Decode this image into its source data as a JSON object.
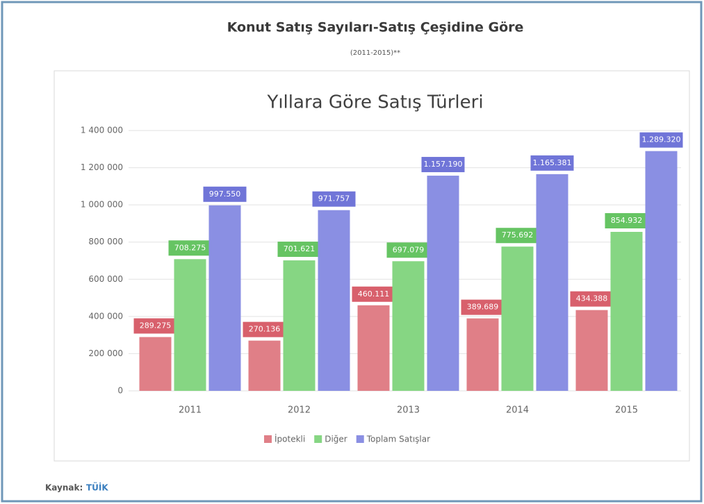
{
  "chart_data": {
    "type": "bar",
    "title": "Konut Satış Sayıları-Satış Çeşidine Göre",
    "subtitle": "(2011-2015)**",
    "chart_title": "Yıllara Göre Satış Türleri",
    "categories": [
      "2011",
      "2012",
      "2013",
      "2014",
      "2015"
    ],
    "series": [
      {
        "name": "İpotekli",
        "color": "#e07f87",
        "label_color": "#d8606c",
        "values": [
          289275,
          270136,
          460111,
          389689,
          434388
        ],
        "value_labels": [
          "289.275",
          "270.136",
          "460.111",
          "389.689",
          "434.388"
        ]
      },
      {
        "name": "Diğer",
        "color": "#86d683",
        "label_color": "#66c463",
        "values": [
          708275,
          701621,
          697079,
          775692,
          854932
        ],
        "value_labels": [
          "708.275",
          "701.621",
          "697.079",
          "775.692",
          "854.932"
        ]
      },
      {
        "name": "Toplam Satışlar",
        "color": "#8a8fe3",
        "label_color": "#7075d8",
        "values": [
          997550,
          971757,
          1157190,
          1165381,
          1289320
        ],
        "value_labels": [
          "997.550",
          "971.757",
          "1.157.190",
          "1.165.381",
          "1.289.320"
        ]
      }
    ],
    "ylim": [
      0,
      1400000
    ],
    "yticks": [
      0,
      {
        "value": 200000,
        "label": "200 000"
      },
      {
        "value": 400000,
        "label": "400 000"
      },
      {
        "value": 600000,
        "label": "600 000"
      },
      {
        "value": 800000,
        "label": "800 000"
      },
      {
        "value": 1000000,
        "label": "1 000 000"
      },
      {
        "value": 1200000,
        "label": "1 200 000"
      },
      {
        "value": 1400000,
        "label": "1 400 000"
      }
    ],
    "grid": true,
    "legend": "bottom",
    "source_label": "Kaynak:",
    "source": "TÜİK"
  }
}
